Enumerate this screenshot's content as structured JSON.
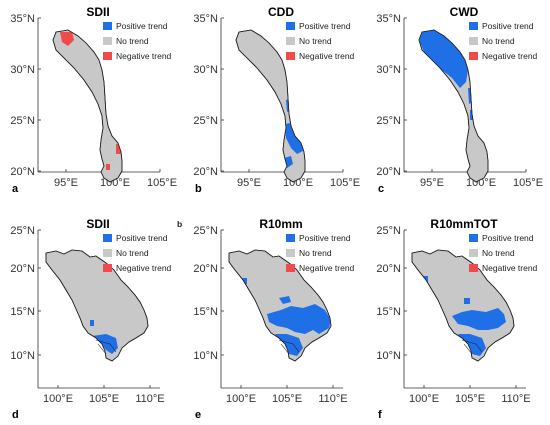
{
  "legend": {
    "positive": "Positive trend",
    "none": "No trend",
    "negative": "Negative trend"
  },
  "colors": {
    "positive": "#1f6fe6",
    "none": "#c8c8c8",
    "negative": "#f04b4b",
    "land_outline": "#222222"
  },
  "top_row": {
    "y_ticks": [
      "35°N",
      "30°N",
      "25°N",
      "20°N"
    ],
    "x_ticks": [
      "95°E",
      "100°E",
      "105°E"
    ]
  },
  "bottom_row": {
    "y_ticks": [
      "25°N",
      "20°N",
      "15°N",
      "10°N"
    ],
    "x_ticks": [
      "100°E",
      "105°E",
      "110°E"
    ]
  },
  "panels": {
    "a": {
      "title": "SDII",
      "label": "a"
    },
    "b": {
      "title": "CDD",
      "label": "b"
    },
    "c": {
      "title": "CWD",
      "label": "c"
    },
    "d": {
      "title": "SDII",
      "label": "d"
    },
    "e": {
      "title": "R10mm",
      "label": "e"
    },
    "f": {
      "title": "R10mmTOT",
      "label": "f"
    }
  },
  "stray_label": "b"
}
